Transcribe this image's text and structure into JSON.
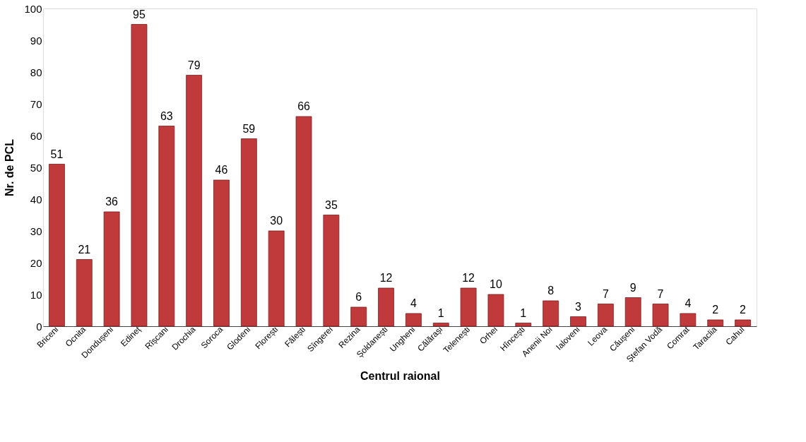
{
  "chart_data": {
    "type": "bar",
    "xlabel": "Centrul raional",
    "ylabel": "Nr. de PCL",
    "categories": [
      "Briceni",
      "Ocnita",
      "Dondușeni",
      "Edineț",
      "Rîșcani",
      "Drochia",
      "Soroca",
      "Glodeni",
      "Florești",
      "Fălești",
      "Sîngerei",
      "Rezina",
      "Șoldanești",
      "Ungheni",
      "Călărași",
      "Telenești",
      "Orhei",
      "Hîncești",
      "Anenii Noi",
      "Ialoveni",
      "Leova",
      "Căușeni",
      "Ștefan Vodă",
      "Comrat",
      "Taraclia",
      "Cahul"
    ],
    "values": [
      51,
      21,
      36,
      95,
      63,
      79,
      46,
      59,
      30,
      66,
      35,
      6,
      12,
      4,
      1,
      12,
      10,
      1,
      8,
      3,
      7,
      9,
      7,
      4,
      2,
      2
    ],
    "color": "#c0393b",
    "ylim": [
      0,
      100
    ],
    "yticks": [
      0,
      10,
      20,
      30,
      40,
      50,
      60,
      70,
      80,
      90,
      100
    ],
    "grid": false,
    "data_labels": true
  }
}
